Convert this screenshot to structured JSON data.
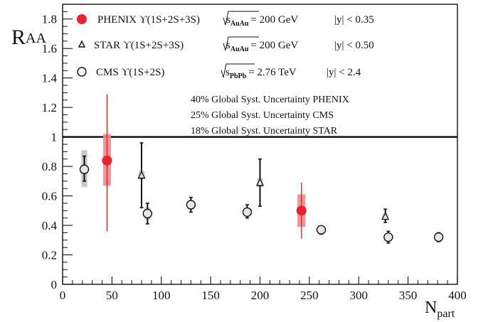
{
  "chart_data": {
    "type": "scatter",
    "xlabel_main": "N",
    "xlabel_sub": "part",
    "ylabel_main": "R",
    "ylabel_sub": "AA",
    "xlim": [
      0,
      400
    ],
    "ylim": [
      0,
      1.9
    ],
    "x_ticks": [
      0,
      50,
      100,
      150,
      200,
      250,
      300,
      350,
      400
    ],
    "y_ticks": [
      0,
      0.2,
      0.4,
      0.6,
      0.8,
      1,
      1.2,
      1.4,
      1.6,
      1.8
    ],
    "x_tick_labels": [
      "0",
      "50",
      "100",
      "150",
      "200",
      "250",
      "300",
      "350",
      "400"
    ],
    "y_tick_labels": [
      "0",
      "0.2",
      "0.4",
      "0.6",
      "0.8",
      "1",
      "1.2",
      "1.4",
      "1.6",
      "1.8"
    ],
    "reference_line": 1.0,
    "grid": false,
    "legend_position": "top-left",
    "legend": [
      {
        "label": "PHENIX ϒ(1S+2S+3S)",
        "energy_sqrt": "s",
        "energy_sub": "AuAu",
        "energy_value": "= 200 GeV",
        "rapidity": "|y| < 0.35",
        "marker": "filled-circle",
        "color": "#e8232b"
      },
      {
        "label": "STAR ϒ(1S+2S+3S)",
        "energy_sqrt": "s",
        "energy_sub": "AuAu",
        "energy_value": "= 200 GeV",
        "rapidity": "|y| < 0.50",
        "marker": "open-triangle",
        "color": "#111111"
      },
      {
        "label": "CMS ϒ(1S+2S)",
        "energy_sqrt": "s",
        "energy_sub": "PbPb",
        "energy_value": "= 2.76 TeV",
        "rapidity": "|y| < 2.4",
        "marker": "open-circle",
        "color": "#111111"
      }
    ],
    "annotations": [
      "40% Global Syst. Uncertainty PHENIX",
      "25% Global Syst. Uncertainty CMS",
      "18% Global Syst. Uncertainty STAR"
    ],
    "series": [
      {
        "name": "PHENIX ϒ(1S+2S+3S)",
        "marker": "filled-circle",
        "color": "#e8232b",
        "box_color": "#f08a8a",
        "points": [
          {
            "x": 45,
            "y": 0.84,
            "err_lo": 0.36,
            "err_hi": 1.29,
            "sys_lo": 0.67,
            "sys_hi": 1.02,
            "sys_halfwidth": 4
          },
          {
            "x": 242,
            "y": 0.5,
            "err_lo": 0.31,
            "err_hi": 0.69,
            "sys_lo": 0.39,
            "sys_hi": 0.61,
            "sys_halfwidth": 4
          }
        ]
      },
      {
        "name": "STAR ϒ(1S+2S+3S)",
        "marker": "open-triangle",
        "color": "#111111",
        "box_color": "#c4c4c4",
        "points": [
          {
            "x": 80,
            "y": 0.74,
            "err_lo": 0.52,
            "err_hi": 0.96,
            "sys_lo": 0.71,
            "sys_hi": 0.77,
            "sys_halfwidth": 3
          },
          {
            "x": 200,
            "y": 0.69,
            "err_lo": 0.53,
            "err_hi": 0.85,
            "sys_lo": 0.66,
            "sys_hi": 0.72,
            "sys_halfwidth": 3
          },
          {
            "x": 327,
            "y": 0.46,
            "err_lo": 0.42,
            "err_hi": 0.51,
            "sys_lo": 0.44,
            "sys_hi": 0.48,
            "sys_halfwidth": 3
          }
        ]
      },
      {
        "name": "CMS ϒ(1S+2S)",
        "marker": "open-circle",
        "color": "#111111",
        "box_color": "#c4c4c4",
        "points": [
          {
            "x": 22,
            "y": 0.78,
            "err_lo": 0.7,
            "err_hi": 0.87,
            "sys_lo": 0.66,
            "sys_hi": 0.91,
            "sys_halfwidth": 3
          },
          {
            "x": 86,
            "y": 0.48,
            "err_lo": 0.41,
            "err_hi": 0.55,
            "sys_lo": 0.44,
            "sys_hi": 0.52,
            "sys_halfwidth": 3
          },
          {
            "x": 130,
            "y": 0.54,
            "err_lo": 0.49,
            "err_hi": 0.59,
            "sys_lo": 0.51,
            "sys_hi": 0.57,
            "sys_halfwidth": 3
          },
          {
            "x": 187,
            "y": 0.49,
            "err_lo": 0.45,
            "err_hi": 0.54,
            "sys_lo": 0.46,
            "sys_hi": 0.52,
            "sys_halfwidth": 3
          },
          {
            "x": 262,
            "y": 0.37,
            "err_lo": 0.34,
            "err_hi": 0.39,
            "sys_lo": 0.35,
            "sys_hi": 0.38,
            "sys_halfwidth": 3
          },
          {
            "x": 330,
            "y": 0.32,
            "err_lo": 0.28,
            "err_hi": 0.36,
            "sys_lo": 0.3,
            "sys_hi": 0.34,
            "sys_halfwidth": 3
          },
          {
            "x": 381,
            "y": 0.32,
            "err_lo": 0.29,
            "err_hi": 0.35,
            "sys_lo": 0.3,
            "sys_hi": 0.34,
            "sys_halfwidth": 3
          }
        ]
      }
    ]
  }
}
